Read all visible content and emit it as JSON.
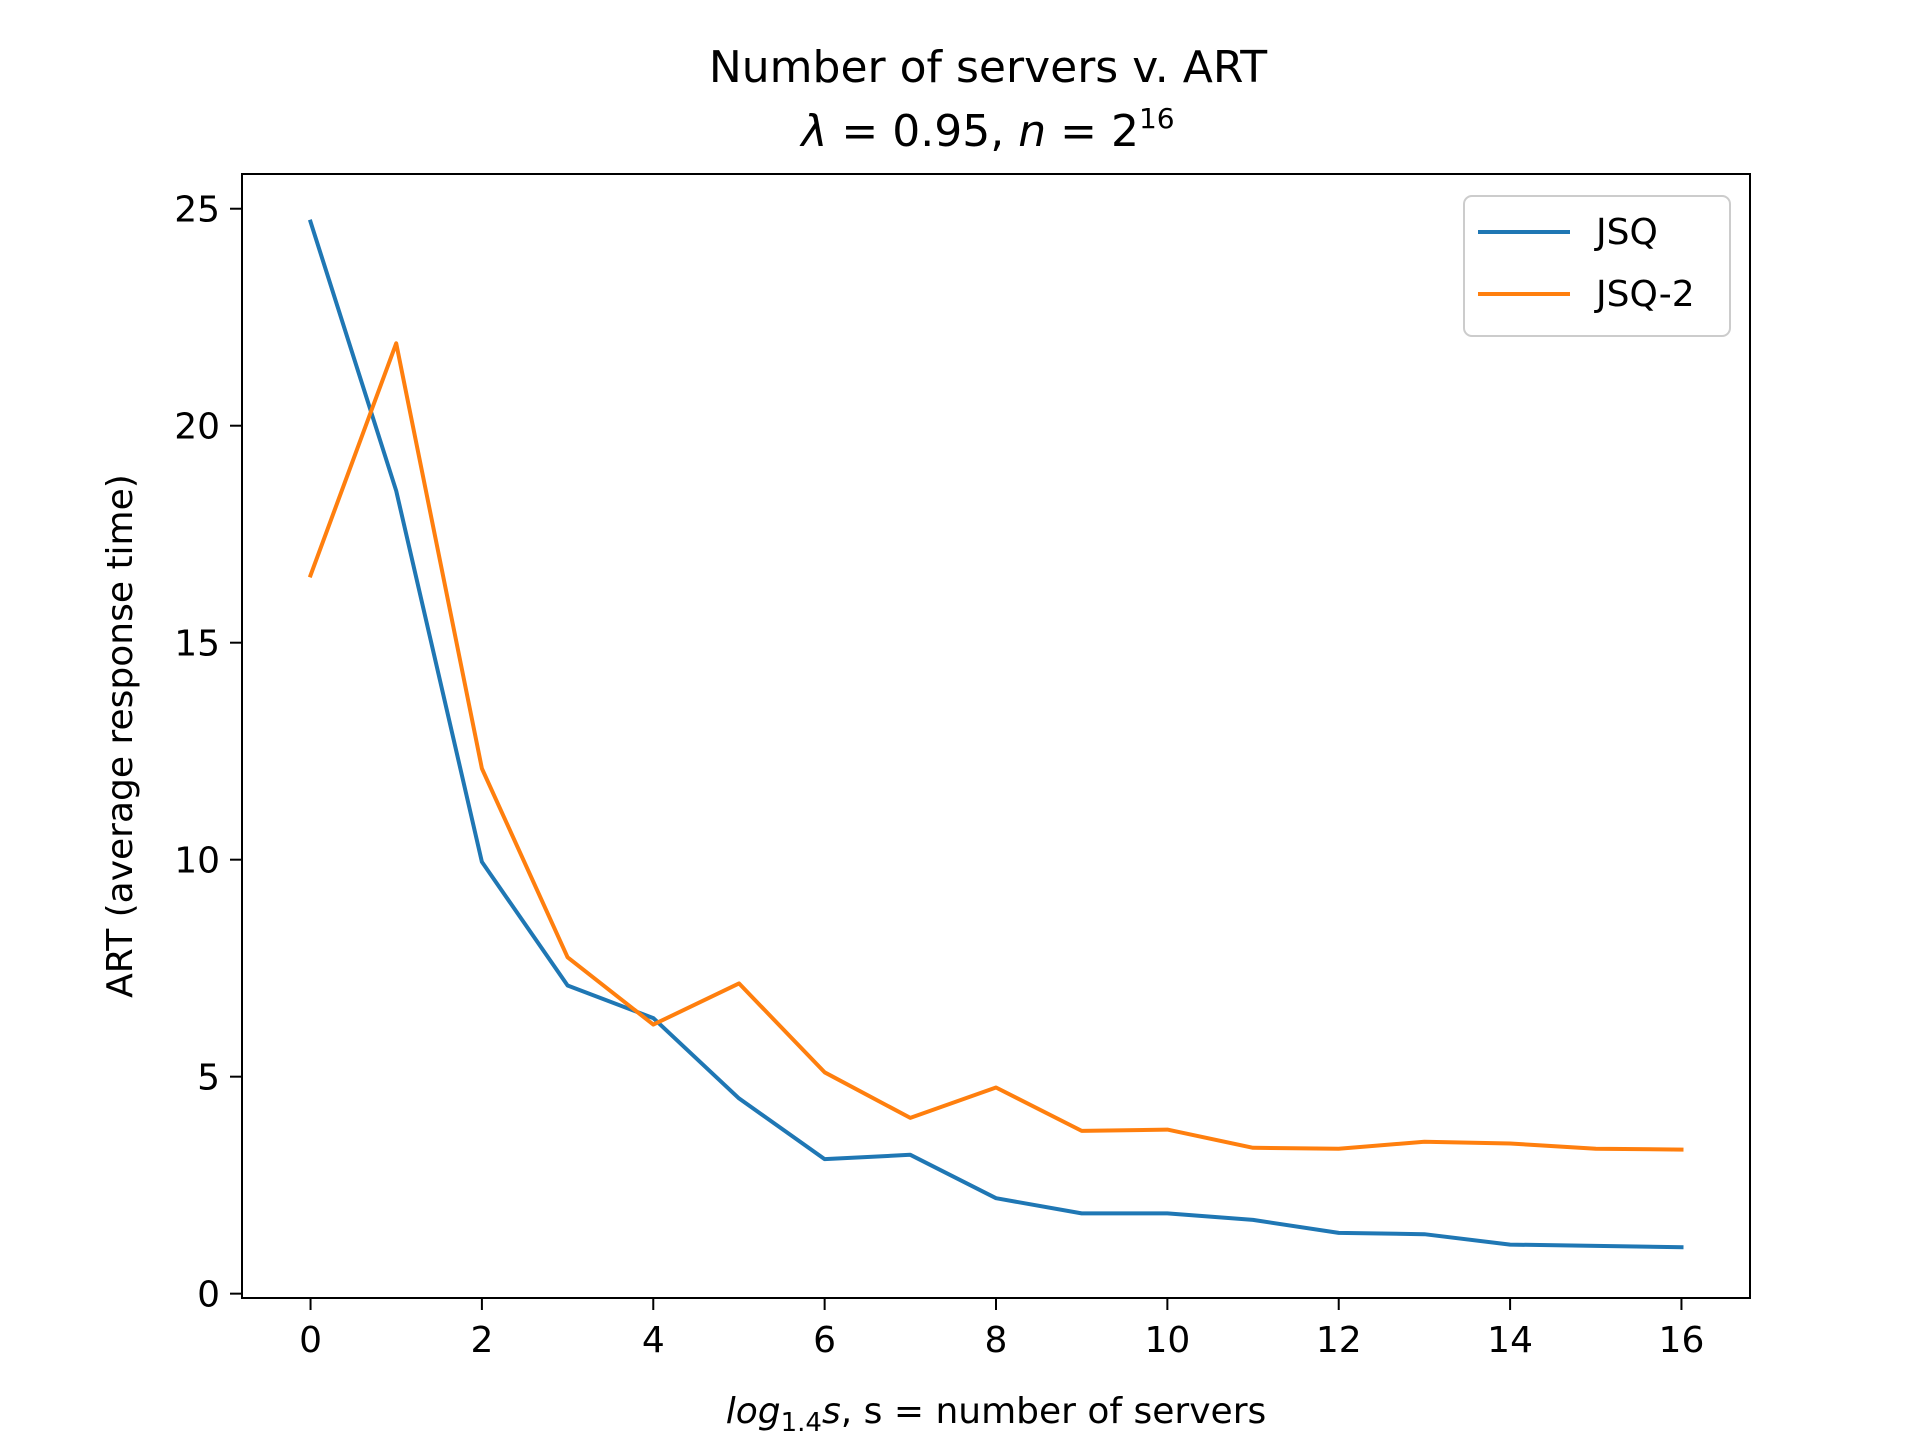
{
  "chart_data": {
    "type": "line",
    "title": "Number of servers v. ART",
    "subtitle": {
      "lambda_symbol": "λ",
      "eq": " = ",
      "lambda_value": "0.95",
      "sep": ", ",
      "n_symbol": "n",
      "n_base": "2",
      "n_exponent": "16"
    },
    "xlabel": {
      "log": "log",
      "base": "1.4",
      "var": "s",
      "rest": ", s = number of servers"
    },
    "ylabel": "ART (average response time)",
    "xlim": [
      -0.8,
      16.8
    ],
    "ylim": [
      -0.1,
      25.8
    ],
    "x_ticks": [
      0,
      2,
      4,
      6,
      8,
      10,
      12,
      14,
      16
    ],
    "x_tick_labels": [
      "0",
      "2",
      "4",
      "6",
      "8",
      "10",
      "12",
      "14",
      "16"
    ],
    "y_ticks": [
      0,
      5,
      10,
      15,
      20,
      25
    ],
    "y_tick_labels": [
      "0",
      "5",
      "10",
      "15",
      "20",
      "25"
    ],
    "grid": false,
    "legend_position": "top-right",
    "x": [
      0,
      1,
      2,
      3,
      4,
      5,
      6,
      7,
      8,
      9,
      10,
      11,
      12,
      13,
      14,
      15,
      16
    ],
    "series": [
      {
        "name": "JSQ",
        "color": "#1f77b4",
        "values": [
          24.7,
          18.5,
          9.95,
          7.1,
          6.35,
          4.5,
          3.1,
          3.2,
          2.2,
          1.85,
          1.85,
          1.7,
          1.4,
          1.37,
          1.13,
          1.1,
          1.07
        ]
      },
      {
        "name": "JSQ-2",
        "color": "#ff7f0e",
        "values": [
          16.55,
          21.9,
          12.1,
          7.75,
          6.2,
          7.15,
          5.1,
          4.05,
          4.75,
          3.75,
          3.78,
          3.36,
          3.34,
          3.5,
          3.46,
          3.34,
          3.32
        ]
      }
    ]
  }
}
